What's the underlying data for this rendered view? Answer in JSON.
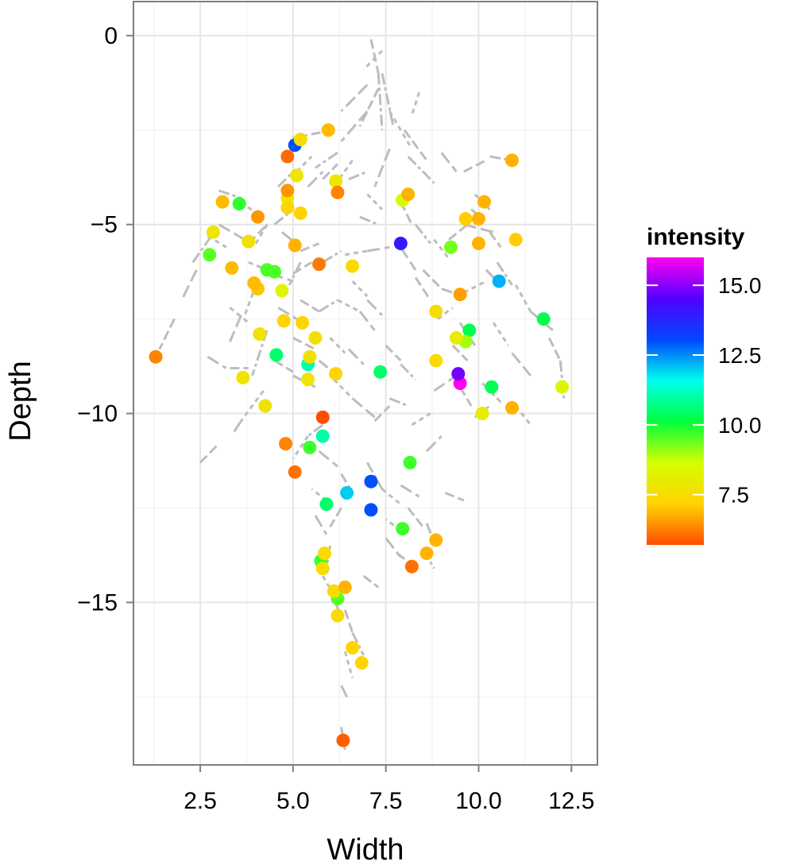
{
  "chart_data": {
    "type": "scatter",
    "title": "",
    "xlabel": "Width",
    "ylabel": "Depth",
    "xlim": [
      0.7,
      13.2
    ],
    "ylim": [
      -19.3,
      0.9
    ],
    "x_ticks": [
      2.5,
      5.0,
      7.5,
      10.0,
      12.5
    ],
    "x_tick_labels": [
      "2.5",
      "5.0",
      "7.5",
      "10.0",
      "12.5"
    ],
    "y_ticks": [
      0,
      -5,
      -10,
      -15
    ],
    "y_tick_labels": [
      "0",
      "−5",
      "−10",
      "−15"
    ],
    "grid": true,
    "legend": {
      "title": "intensity",
      "placement": "right",
      "type": "colorbar",
      "range": [
        5.7,
        16.0
      ],
      "ticks": [
        15.0,
        12.5,
        10.0,
        7.5
      ],
      "tick_labels": [
        "15.0",
        "12.5",
        "10.0",
        "7.5"
      ],
      "colors": [
        "#ff4d00",
        "#ffd400",
        "#d4ff00",
        "#00ff3c",
        "#00ffee",
        "#0047ff",
        "#5200ff",
        "#ff00f0"
      ]
    },
    "segments_color": "#bdbdbd",
    "segments": [
      [
        7.1,
        -0.1,
        7.3,
        -1.0
      ],
      [
        7.3,
        -1.0,
        7.4,
        -2.5
      ],
      [
        7.4,
        -0.4,
        6.9,
        -0.9
      ],
      [
        7.0,
        -1.3,
        6.3,
        -2.0
      ],
      [
        7.3,
        -1.4,
        6.8,
        -2.4
      ],
      [
        7.4,
        -1.0,
        7.7,
        -2.4
      ],
      [
        7.6,
        -2.0,
        8.2,
        -3.0
      ],
      [
        7.0,
        -2.0,
        6.3,
        -2.8
      ],
      [
        6.1,
        -2.5,
        5.0,
        -2.7
      ],
      [
        6.2,
        -3.1,
        5.6,
        -3.5
      ],
      [
        6.6,
        -3.3,
        6.1,
        -4.0
      ],
      [
        7.6,
        -3.0,
        7.2,
        -4.0
      ],
      [
        8.0,
        -2.5,
        8.6,
        -3.3
      ],
      [
        8.1,
        -3.2,
        8.8,
        -3.9
      ],
      [
        8.4,
        -1.5,
        8.2,
        -2.1
      ],
      [
        9.0,
        -3.1,
        9.4,
        -3.6
      ],
      [
        9.6,
        -3.6,
        10.2,
        -3.3
      ],
      [
        10.3,
        -3.2,
        10.9,
        -3.3
      ],
      [
        9.9,
        -4.2,
        10.3,
        -4.6
      ],
      [
        9.6,
        -5.0,
        10.4,
        -5.2
      ],
      [
        10.3,
        -5.2,
        10.6,
        -5.6
      ],
      [
        10.5,
        -6.0,
        10.9,
        -6.6
      ],
      [
        11.0,
        -6.6,
        11.4,
        -7.3
      ],
      [
        11.4,
        -7.3,
        12.0,
        -7.8
      ],
      [
        11.9,
        -8.0,
        12.2,
        -8.6
      ],
      [
        12.2,
        -8.6,
        12.3,
        -9.6
      ],
      [
        4.0,
        -6.6,
        3.7,
        -7.4
      ],
      [
        3.6,
        -7.4,
        3.3,
        -8.1
      ],
      [
        3.3,
        -8.8,
        3.8,
        -8.8
      ],
      [
        4.3,
        -7.8,
        3.9,
        -9.0
      ],
      [
        4.2,
        -9.4,
        3.6,
        -10.2
      ],
      [
        3.6,
        -10.2,
        3.4,
        -10.5
      ],
      [
        2.5,
        -11.3,
        3.0,
        -10.8
      ],
      [
        2.3,
        -6.0,
        2.8,
        -5.3
      ],
      [
        2.7,
        -5.3,
        3.2,
        -5.6
      ],
      [
        2.4,
        -6.2,
        2.0,
        -7.0
      ],
      [
        1.8,
        -7.5,
        1.4,
        -8.3
      ],
      [
        3.0,
        -4.1,
        3.6,
        -4.3
      ],
      [
        3.6,
        -4.4,
        4.0,
        -4.7
      ],
      [
        3.0,
        -5.0,
        3.7,
        -5.4
      ],
      [
        3.8,
        -5.5,
        4.3,
        -5.0
      ],
      [
        4.5,
        -5.0,
        5.0,
        -4.6
      ],
      [
        3.8,
        -6.0,
        4.3,
        -6.2
      ],
      [
        4.4,
        -6.3,
        5.0,
        -6.5
      ],
      [
        5.0,
        -6.3,
        5.5,
        -6.0
      ],
      [
        5.8,
        -6.0,
        6.3,
        -5.7
      ],
      [
        6.4,
        -5.8,
        7.0,
        -5.7
      ],
      [
        7.0,
        -5.7,
        7.6,
        -5.6
      ],
      [
        5.2,
        -7.0,
        5.7,
        -7.3
      ],
      [
        5.7,
        -7.3,
        6.2,
        -7.0
      ],
      [
        6.2,
        -7.0,
        6.8,
        -7.3
      ],
      [
        6.8,
        -7.3,
        7.2,
        -7.8
      ],
      [
        5.0,
        -8.0,
        5.6,
        -8.3
      ],
      [
        5.7,
        -8.6,
        6.2,
        -9.0
      ],
      [
        6.1,
        -9.1,
        6.6,
        -9.6
      ],
      [
        6.6,
        -9.6,
        7.2,
        -10.1
      ],
      [
        7.2,
        -10.2,
        7.6,
        -9.8
      ],
      [
        7.6,
        -9.6,
        8.1,
        -9.8
      ],
      [
        8.2,
        -10.3,
        8.7,
        -10.0
      ],
      [
        8.8,
        -9.4,
        9.4,
        -9.0
      ],
      [
        9.5,
        -9.3,
        9.8,
        -9.8
      ],
      [
        9.9,
        -10.1,
        10.3,
        -9.8
      ],
      [
        8.9,
        -7.5,
        9.3,
        -7.2
      ],
      [
        9.5,
        -7.6,
        9.9,
        -8.2
      ],
      [
        8.5,
        -6.2,
        9.0,
        -6.7
      ],
      [
        9.0,
        -6.7,
        9.6,
        -6.9
      ],
      [
        9.6,
        -6.8,
        10.2,
        -6.5
      ],
      [
        10.2,
        -6.2,
        10.6,
        -6.6
      ],
      [
        7.9,
        -4.4,
        8.2,
        -5.0
      ],
      [
        8.3,
        -5.0,
        8.7,
        -5.5
      ],
      [
        8.8,
        -5.4,
        9.2,
        -5.9
      ],
      [
        7.9,
        -5.6,
        8.3,
        -6.2
      ],
      [
        8.3,
        -6.4,
        8.7,
        -7.0
      ],
      [
        5.8,
        -10.3,
        5.4,
        -10.6
      ],
      [
        5.4,
        -10.6,
        5.0,
        -11.2
      ],
      [
        5.7,
        -11.0,
        6.2,
        -11.4
      ],
      [
        6.3,
        -11.6,
        6.6,
        -12.1
      ],
      [
        7.0,
        -11.3,
        7.4,
        -12.0
      ],
      [
        7.4,
        -12.0,
        7.9,
        -12.4
      ],
      [
        7.9,
        -11.9,
        8.4,
        -12.2
      ],
      [
        8.1,
        -12.5,
        8.5,
        -13.0
      ],
      [
        8.6,
        -12.9,
        8.8,
        -13.4
      ],
      [
        7.9,
        -13.1,
        7.5,
        -12.8
      ],
      [
        7.5,
        -13.3,
        7.9,
        -13.8
      ],
      [
        7.8,
        -13.7,
        8.2,
        -14.0
      ],
      [
        8.5,
        -13.6,
        8.8,
        -14.1
      ],
      [
        5.9,
        -12.3,
        5.5,
        -12.0
      ],
      [
        5.6,
        -12.7,
        5.9,
        -13.2
      ],
      [
        6.3,
        -12.5,
        6.0,
        -13.0
      ],
      [
        6.0,
        -13.5,
        5.9,
        -14.1
      ],
      [
        5.8,
        -14.3,
        6.1,
        -14.8
      ],
      [
        6.1,
        -14.9,
        6.3,
        -15.4
      ],
      [
        6.4,
        -15.2,
        6.6,
        -15.8
      ],
      [
        6.6,
        -15.8,
        6.9,
        -16.4
      ],
      [
        6.4,
        -16.3,
        6.6,
        -17.0
      ],
      [
        6.3,
        -17.2,
        6.5,
        -17.6
      ],
      [
        6.3,
        -18.3,
        6.4,
        -18.9
      ],
      [
        4.6,
        -4.0,
        5.0,
        -3.6
      ],
      [
        5.1,
        -3.6,
        5.5,
        -3.2
      ],
      [
        5.4,
        -4.0,
        5.8,
        -3.6
      ],
      [
        5.8,
        -3.8,
        6.2,
        -3.4
      ],
      [
        6.5,
        -3.8,
        7.0,
        -3.6
      ],
      [
        7.0,
        -4.2,
        7.4,
        -4.6
      ],
      [
        4.7,
        -5.2,
        5.2,
        -5.6
      ],
      [
        5.2,
        -5.7,
        5.7,
        -5.5
      ],
      [
        6.8,
        -4.8,
        7.3,
        -5.0
      ],
      [
        6.6,
        -6.5,
        7.0,
        -6.9
      ],
      [
        7.0,
        -7.0,
        7.4,
        -7.4
      ],
      [
        7.5,
        -8.2,
        7.9,
        -8.6
      ],
      [
        7.9,
        -8.7,
        8.3,
        -9.1
      ],
      [
        6.0,
        -8.0,
        6.4,
        -8.4
      ],
      [
        6.5,
        -8.3,
        6.9,
        -8.7
      ],
      [
        4.5,
        -8.6,
        5.0,
        -8.9
      ],
      [
        5.0,
        -9.0,
        5.6,
        -9.3
      ],
      [
        3.3,
        -7.2,
        3.8,
        -7.6
      ],
      [
        4.6,
        -7.2,
        5.1,
        -7.5
      ],
      [
        9.2,
        -5.4,
        9.7,
        -5.0
      ],
      [
        9.8,
        -4.6,
        10.2,
        -4.9
      ],
      [
        10.4,
        -7.6,
        10.8,
        -8.2
      ],
      [
        10.9,
        -8.4,
        11.4,
        -9.0
      ],
      [
        9.3,
        -8.2,
        9.7,
        -8.6
      ],
      [
        10.1,
        -9.2,
        10.6,
        -9.7
      ],
      [
        11.0,
        -9.8,
        11.4,
        -10.3
      ],
      [
        8.6,
        -11.0,
        9.0,
        -10.6
      ],
      [
        9.1,
        -12.1,
        9.6,
        -12.3
      ],
      [
        5.2,
        -6.0,
        4.9,
        -6.6
      ],
      [
        4.3,
        -5.0,
        4.0,
        -5.5
      ],
      [
        2.7,
        -8.5,
        3.2,
        -8.8
      ],
      [
        6.9,
        -14.3,
        7.3,
        -14.6
      ]
    ],
    "points": [
      {
        "x": 7.9,
        "y": -5.5,
        "intensity": 14.0
      },
      {
        "x": 9.5,
        "y": -9.2,
        "intensity": 16.0
      },
      {
        "x": 9.45,
        "y": -8.95,
        "intensity": 14.8
      },
      {
        "x": 10.55,
        "y": -6.5,
        "intensity": 12.2
      },
      {
        "x": 5.05,
        "y": -2.9,
        "intensity": 13.0
      },
      {
        "x": 7.1,
        "y": -11.8,
        "intensity": 13.0
      },
      {
        "x": 7.1,
        "y": -12.55,
        "intensity": 13.0
      },
      {
        "x": 6.45,
        "y": -12.1,
        "intensity": 12.0
      },
      {
        "x": 5.8,
        "y": -10.1,
        "intensity": 5.7
      },
      {
        "x": 4.85,
        "y": -3.2,
        "intensity": 6.0
      },
      {
        "x": 5.8,
        "y": -10.6,
        "intensity": 11.0
      },
      {
        "x": 5.4,
        "y": -8.7,
        "intensity": 11.0
      },
      {
        "x": 4.55,
        "y": -8.45,
        "intensity": 10.5
      },
      {
        "x": 5.9,
        "y": -12.4,
        "intensity": 10.5
      },
      {
        "x": 7.35,
        "y": -8.9,
        "intensity": 10.5
      },
      {
        "x": 9.75,
        "y": -7.8,
        "intensity": 10.3
      },
      {
        "x": 11.75,
        "y": -7.5,
        "intensity": 10.3
      },
      {
        "x": 10.35,
        "y": -9.3,
        "intensity": 10.3
      },
      {
        "x": 3.55,
        "y": -4.45,
        "intensity": 9.8
      },
      {
        "x": 2.75,
        "y": -5.8,
        "intensity": 9.5
      },
      {
        "x": 4.3,
        "y": -6.2,
        "intensity": 9.6
      },
      {
        "x": 4.5,
        "y": -6.25,
        "intensity": 9.6
      },
      {
        "x": 5.45,
        "y": -10.9,
        "intensity": 9.7
      },
      {
        "x": 8.15,
        "y": -11.3,
        "intensity": 9.7
      },
      {
        "x": 7.95,
        "y": -13.05,
        "intensity": 9.7
      },
      {
        "x": 5.75,
        "y": -13.9,
        "intensity": 9.7
      },
      {
        "x": 6.2,
        "y": -14.9,
        "intensity": 9.5
      },
      {
        "x": 9.25,
        "y": -5.6,
        "intensity": 9.3
      },
      {
        "x": 9.65,
        "y": -8.1,
        "intensity": 9.0
      },
      {
        "x": 7.95,
        "y": -4.35,
        "intensity": 8.4
      },
      {
        "x": 4.7,
        "y": -6.75,
        "intensity": 8.3
      },
      {
        "x": 12.25,
        "y": -9.3,
        "intensity": 8.3
      },
      {
        "x": 10.1,
        "y": -10.0,
        "intensity": 8.0
      },
      {
        "x": 9.4,
        "y": -8.0,
        "intensity": 8.0
      },
      {
        "x": 2.85,
        "y": -5.2,
        "intensity": 7.8
      },
      {
        "x": 5.1,
        "y": -3.7,
        "intensity": 7.8
      },
      {
        "x": 6.15,
        "y": -3.85,
        "intensity": 7.8
      },
      {
        "x": 4.85,
        "y": -4.3,
        "intensity": 7.8
      },
      {
        "x": 3.8,
        "y": -5.45,
        "intensity": 7.6
      },
      {
        "x": 4.1,
        "y": -7.9,
        "intensity": 7.7
      },
      {
        "x": 3.65,
        "y": -9.05,
        "intensity": 7.7
      },
      {
        "x": 4.25,
        "y": -9.8,
        "intensity": 7.7
      },
      {
        "x": 5.4,
        "y": -9.1,
        "intensity": 7.7
      },
      {
        "x": 5.45,
        "y": -8.5,
        "intensity": 7.6
      },
      {
        "x": 5.6,
        "y": -8.0,
        "intensity": 7.6
      },
      {
        "x": 8.85,
        "y": -8.6,
        "intensity": 7.4
      },
      {
        "x": 8.85,
        "y": -7.3,
        "intensity": 7.4
      },
      {
        "x": 6.6,
        "y": -6.1,
        "intensity": 7.4
      },
      {
        "x": 5.2,
        "y": -2.75,
        "intensity": 7.4
      },
      {
        "x": 5.85,
        "y": -13.7,
        "intensity": 7.4
      },
      {
        "x": 5.8,
        "y": -14.1,
        "intensity": 7.4
      },
      {
        "x": 6.1,
        "y": -14.7,
        "intensity": 7.4
      },
      {
        "x": 6.2,
        "y": -15.35,
        "intensity": 7.4
      },
      {
        "x": 6.6,
        "y": -16.2,
        "intensity": 7.2
      },
      {
        "x": 6.85,
        "y": -16.6,
        "intensity": 7.2
      },
      {
        "x": 4.85,
        "y": -4.55,
        "intensity": 7.2
      },
      {
        "x": 5.2,
        "y": -4.7,
        "intensity": 7.2
      },
      {
        "x": 4.75,
        "y": -7.55,
        "intensity": 7.2
      },
      {
        "x": 5.25,
        "y": -7.6,
        "intensity": 7.2
      },
      {
        "x": 6.15,
        "y": -8.95,
        "intensity": 7.2
      },
      {
        "x": 9.65,
        "y": -4.85,
        "intensity": 7.1
      },
      {
        "x": 11.0,
        "y": -5.4,
        "intensity": 7.1
      },
      {
        "x": 4.05,
        "y": -6.7,
        "intensity": 7.0
      },
      {
        "x": 3.95,
        "y": -6.55,
        "intensity": 6.9
      },
      {
        "x": 3.35,
        "y": -6.15,
        "intensity": 6.9
      },
      {
        "x": 3.1,
        "y": -4.4,
        "intensity": 6.9
      },
      {
        "x": 5.95,
        "y": -2.5,
        "intensity": 6.9
      },
      {
        "x": 8.1,
        "y": -4.2,
        "intensity": 6.8
      },
      {
        "x": 10.15,
        "y": -4.4,
        "intensity": 6.8
      },
      {
        "x": 10.0,
        "y": -4.85,
        "intensity": 6.8
      },
      {
        "x": 10.0,
        "y": -5.5,
        "intensity": 6.8
      },
      {
        "x": 10.9,
        "y": -3.3,
        "intensity": 6.8
      },
      {
        "x": 10.9,
        "y": -9.85,
        "intensity": 6.8
      },
      {
        "x": 9.5,
        "y": -6.85,
        "intensity": 6.6
      },
      {
        "x": 5.05,
        "y": -5.55,
        "intensity": 6.8
      },
      {
        "x": 4.85,
        "y": -4.1,
        "intensity": 6.5
      },
      {
        "x": 4.05,
        "y": -4.8,
        "intensity": 6.5
      },
      {
        "x": 6.2,
        "y": -4.15,
        "intensity": 6.3
      },
      {
        "x": 5.7,
        "y": -6.05,
        "intensity": 6.2
      },
      {
        "x": 8.85,
        "y": -13.35,
        "intensity": 6.8
      },
      {
        "x": 8.6,
        "y": -13.7,
        "intensity": 6.8
      },
      {
        "x": 6.4,
        "y": -14.6,
        "intensity": 6.8
      },
      {
        "x": 4.8,
        "y": -10.8,
        "intensity": 6.3
      },
      {
        "x": 5.05,
        "y": -11.55,
        "intensity": 6.1
      },
      {
        "x": 8.2,
        "y": -14.05,
        "intensity": 6.1
      },
      {
        "x": 1.3,
        "y": -8.5,
        "intensity": 6.3
      },
      {
        "x": 6.35,
        "y": -18.65,
        "intensity": 5.9
      }
    ]
  }
}
